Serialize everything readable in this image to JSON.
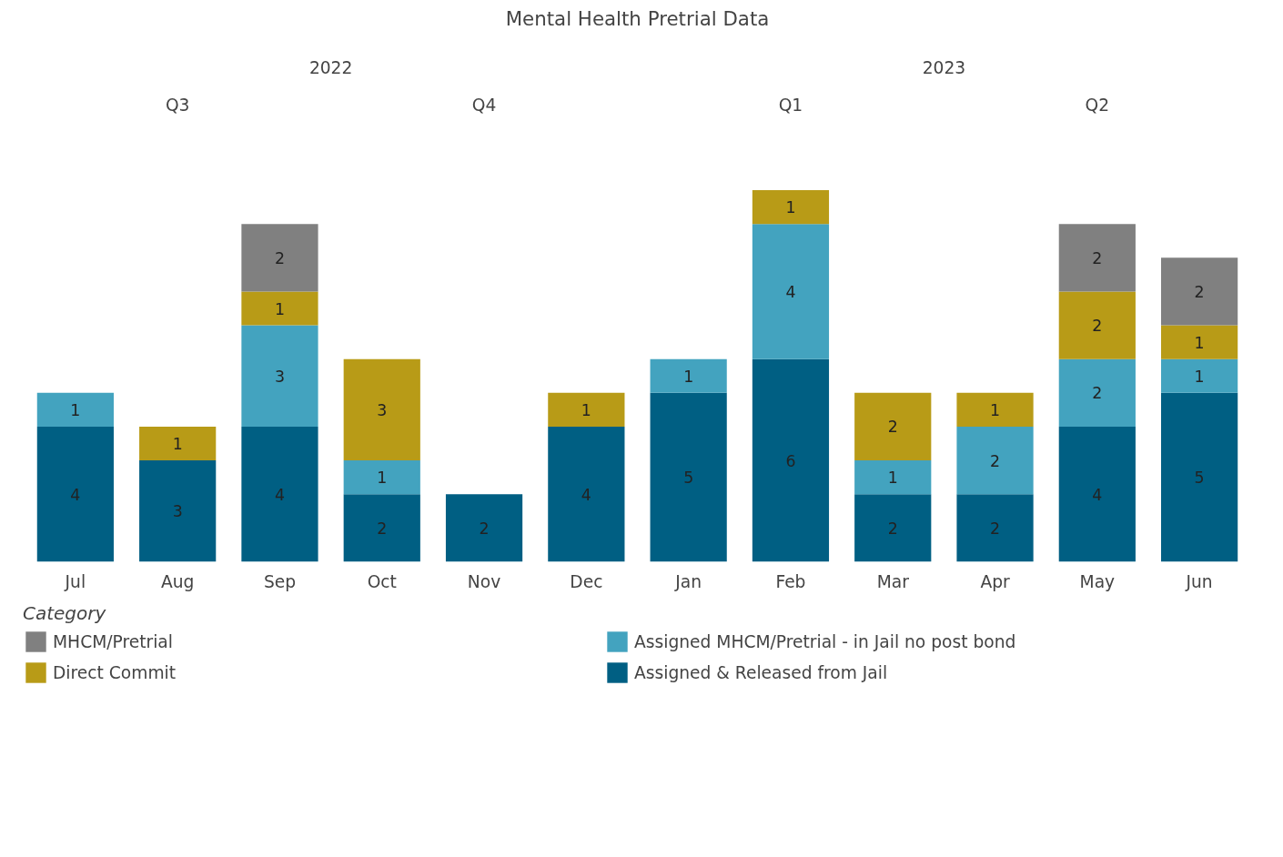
{
  "chart_data": {
    "type": "bar",
    "title": "Mental Health Pretrial Data",
    "stacked": true,
    "data_labels": true,
    "legend": "bottom",
    "legend_title": "Category",
    "grid": false,
    "categories": [
      "Jul",
      "Aug",
      "Sep",
      "Oct",
      "Nov",
      "Dec",
      "Jan",
      "Feb",
      "Mar",
      "Apr",
      "May",
      "Jun"
    ],
    "series": [
      {
        "name": "Assigned & Released from Jail",
        "color": "#005f83",
        "values": [
          4,
          3,
          4,
          2,
          2,
          4,
          5,
          6,
          2,
          2,
          4,
          5
        ]
      },
      {
        "name": "Assigned MHCM/Pretrial - in Jail no post bond",
        "color": "#43a3bf",
        "values": [
          1,
          null,
          3,
          1,
          null,
          null,
          1,
          4,
          1,
          2,
          2,
          1
        ]
      },
      {
        "name": "Direct Commit",
        "color": "#b89b17",
        "values": [
          null,
          1,
          1,
          3,
          null,
          1,
          null,
          1,
          2,
          1,
          2,
          1
        ]
      },
      {
        "name": "MHCM/Pretrial",
        "color": "#808080",
        "values": [
          null,
          null,
          2,
          null,
          null,
          null,
          null,
          null,
          null,
          null,
          2,
          2
        ]
      }
    ],
    "annotations": [
      "2022",
      "2023",
      "Q3",
      "Q4",
      "Q1",
      "Q2"
    ]
  }
}
